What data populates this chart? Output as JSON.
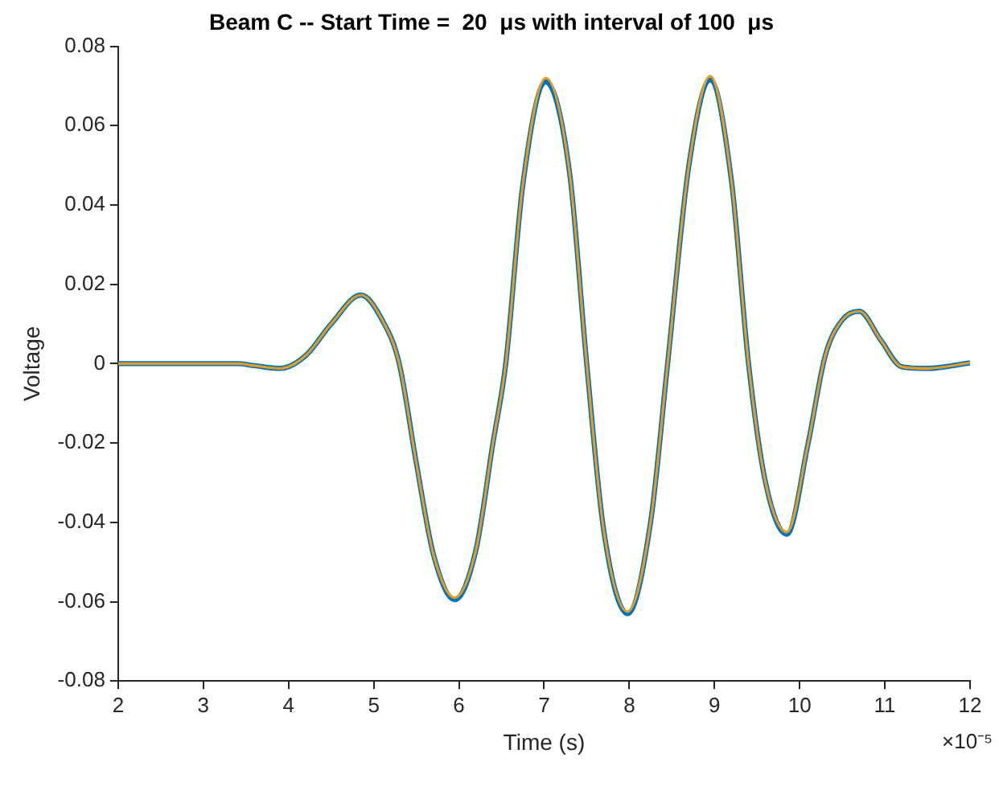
{
  "chart_data": {
    "type": "line",
    "title": "Beam C -- Start Time =  20  μs with interval of 100  μs",
    "xlabel": "Time (s)",
    "ylabel": "Voltage",
    "annotations": [
      "×10⁻⁵"
    ],
    "xlim": [
      2,
      12
    ],
    "xticks": [
      2,
      3,
      4,
      5,
      6,
      7,
      8,
      9,
      10,
      11,
      12
    ],
    "ylim": [
      -0.08,
      0.08
    ],
    "yticks": [
      -0.08,
      -0.06,
      -0.04,
      -0.02,
      0,
      0.02,
      0.04,
      0.06,
      0.08
    ],
    "x": [
      2,
      3,
      3.4,
      3.6,
      3.9,
      4.2,
      4.5,
      4.85,
      5.1,
      5.3,
      5.5,
      5.7,
      5.95,
      6.2,
      6.4,
      6.55,
      6.75,
      7.02,
      7.3,
      7.5,
      7.7,
      7.98,
      8.25,
      8.45,
      8.7,
      8.95,
      9.2,
      9.4,
      9.6,
      9.85,
      10.1,
      10.3,
      10.5,
      10.7,
      10.95,
      11.2,
      11.5,
      12
    ],
    "series": [
      {
        "color": "#0072bd",
        "values": [
          0,
          0,
          0,
          -0.0005,
          -0.0012,
          0.002,
          0.01,
          0.0173,
          0.011,
          0,
          -0.025,
          -0.048,
          -0.0595,
          -0.047,
          -0.02,
          0,
          0.045,
          0.071,
          0.048,
          0,
          -0.042,
          -0.063,
          -0.04,
          0,
          0.05,
          0.0715,
          0.046,
          0,
          -0.03,
          -0.043,
          -0.02,
          0.002,
          0.011,
          0.0132,
          0.006,
          -0.0008,
          -0.0012,
          0.0002
        ]
      },
      {
        "color": "#e69b21",
        "values": [
          0,
          0,
          0,
          -0.0005,
          -0.0012,
          0.002,
          0.01,
          0.0173,
          0.011,
          0,
          -0.025,
          -0.048,
          -0.059,
          -0.047,
          -0.02,
          0,
          0.045,
          0.072,
          0.048,
          0,
          -0.042,
          -0.0625,
          -0.04,
          0,
          0.05,
          0.0725,
          0.046,
          0,
          -0.03,
          -0.0425,
          -0.02,
          0.002,
          0.011,
          0.0132,
          0.006,
          -0.0008,
          -0.0012,
          0.0002
        ]
      }
    ],
    "grid": false,
    "legend": false,
    "marker": "none",
    "line_style": "solid"
  }
}
